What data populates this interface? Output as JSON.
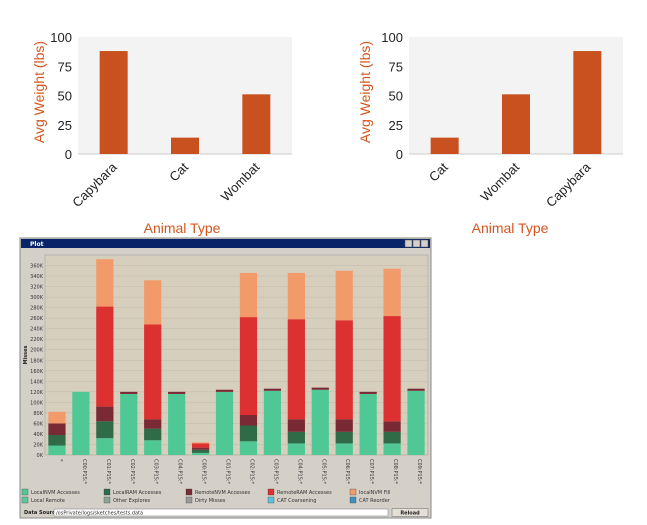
{
  "colors": {
    "orange_bar": "#c9511f",
    "axis_label": "#d4561f",
    "plot_bg": "#f3f3f3",
    "window_bg": "#d4d0c8",
    "title_bar": "#0a246a",
    "stack": [
      "#4fc896",
      "#2e6b46",
      "#7a2a34",
      "#dd3030",
      "#f29a6a"
    ]
  },
  "chart_data": [
    {
      "type": "bar",
      "title": "",
      "xlabel": "Animal Type",
      "ylabel": "Avg Weight (lbs)",
      "ylim": [
        0,
        100
      ],
      "yticks": [
        "0",
        "25",
        "50",
        "75",
        "100"
      ],
      "categories": [
        "Capybara",
        "Cat",
        "Wombat"
      ],
      "values": [
        88,
        14,
        51
      ]
    },
    {
      "type": "bar",
      "title": "",
      "xlabel": "Animal Type",
      "ylabel": "Avg Weight (lbs)",
      "ylim": [
        0,
        100
      ],
      "yticks": [
        "0",
        "25",
        "50",
        "75",
        "100"
      ],
      "categories": [
        "Cat",
        "Wombat",
        "Capybara"
      ],
      "values": [
        14,
        51,
        88
      ]
    },
    {
      "type": "bar",
      "stacked": true,
      "window_title": "Plot",
      "ylabel": "Misses",
      "ylim": [
        0,
        380000
      ],
      "yticks": [
        "0K",
        "20K",
        "40K",
        "60K",
        "80K",
        "100K",
        "120K",
        "140K",
        "160K",
        "180K",
        "200K",
        "220K",
        "240K",
        "260K",
        "280K",
        "300K",
        "320K",
        "340K",
        "360K"
      ],
      "categories": [
        "*",
        "C00:P15:*",
        "C01:P15:*",
        "C02:P15:*",
        "C03:P15:*",
        "C04:P15:*",
        "C00:P15:*",
        "C01:P15:*",
        "C02:P15:*",
        "C03:P15:*",
        "C04:P15:*",
        "C05:P15:*",
        "C06:P15:*",
        "C07:P15:*",
        "C08:P15:*",
        "C09:P15:*"
      ],
      "series": [
        {
          "name": "LocalNVM Accesses",
          "values": [
            18000,
            120000,
            32000,
            116000,
            28000,
            116000,
            4000,
            120000,
            26000,
            122000,
            22000,
            124000,
            22000,
            116000,
            22000,
            122000
          ]
        },
        {
          "name": "LocalRAM Accesses",
          "values": [
            20000,
            0,
            32000,
            0,
            22000,
            0,
            6000,
            0,
            30000,
            0,
            22000,
            0,
            22000,
            0,
            22000,
            0
          ]
        },
        {
          "name": "RemoteNVM Accesses",
          "values": [
            22000,
            0,
            28000,
            4000,
            18000,
            4000,
            4000,
            4000,
            20000,
            4000,
            24000,
            4000,
            24000,
            4000,
            20000,
            4000
          ]
        },
        {
          "name": "RemoteRAM Accesses",
          "values": [
            0,
            0,
            190000,
            0,
            180000,
            0,
            8000,
            0,
            186000,
            0,
            190000,
            0,
            188000,
            0,
            200000,
            0
          ]
        },
        {
          "name": "localNVM Fill",
          "values": [
            22000,
            0,
            90000,
            0,
            84000,
            0,
            2000,
            0,
            84000,
            0,
            88000,
            0,
            94000,
            0,
            90000,
            0
          ]
        }
      ],
      "legend": [
        "LocalNVM Accesses",
        "LocalRAM Accesses",
        "RemoteNVM Accesses",
        "RemoteRAM Accesses",
        "localNVM Fill",
        "Local Remote",
        "Other Explores",
        "Dirty Misses",
        "CAT Coarsening",
        "CAT Reorder"
      ],
      "data_source_label": "Data Source:",
      "data_source_value": "/osPrivate/logs/sketches/tests.data",
      "reload_label": "Reload"
    }
  ]
}
